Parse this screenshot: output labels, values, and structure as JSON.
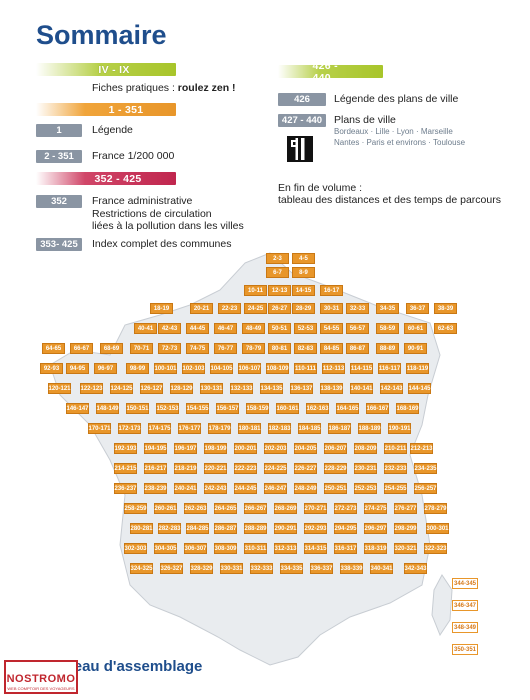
{
  "page_title": "Sommaire",
  "left": {
    "b1": {
      "range": "IV - IX",
      "text_prefix": "Fiches pratiques : ",
      "text_bold": "roulez zen !"
    },
    "b2": {
      "range": "1 - 351"
    },
    "legend": {
      "tag": "1",
      "text": "Légende"
    },
    "france": {
      "tag": "2 - 351",
      "text": "France 1/200 000"
    },
    "b3": {
      "range": "352 - 425"
    },
    "admin": {
      "tag": "352",
      "line1": "France administrative",
      "line2": "Restrictions de circulation",
      "line3": "liées à la pollution dans les villes"
    },
    "index": {
      "tag": "353- 425",
      "text": "Index complet des communes"
    }
  },
  "right": {
    "b4": {
      "range": "426 - 440"
    },
    "legend_plans": {
      "tag": "426",
      "text": "Légende des plans de ville"
    },
    "plans": {
      "tag": "427 - 440",
      "text": "Plans de ville",
      "cities1": "Bordeaux · Lille · Lyon · Marseille",
      "cities2": "Nantes · Paris et environs · Toulouse"
    },
    "end_line1": "En fin de volume :",
    "end_line2": "tableau des distances et des temps de parcours"
  },
  "colors": {
    "title": "#1f4e8c",
    "tile": "#e8962a",
    "tag": "#8a95a3",
    "green": "#a8c52a",
    "orange": "#e8962a",
    "crimson": "#c0264e"
  },
  "map_tiles": [
    [
      "2-3",
      "4-5",
      "6-7",
      "8-9",
      "10-11",
      "12-13",
      "14-15",
      "16-17",
      "18-19",
      "20-21",
      "22-23",
      "24-25",
      "26-27",
      "28-29",
      "30-31",
      "32-33",
      "34-35",
      "36-37",
      "38-39",
      "40-41",
      "42-43",
      "44-45",
      "46-47",
      "48-49"
    ],
    [
      "50-51",
      "52-53",
      "54-55",
      "56-57",
      "58-59",
      "60-61",
      "62-63",
      "64-65",
      "66-67",
      "68-69",
      "70-71",
      "72-73",
      "74-75",
      "76-77",
      "78-79",
      "80-81",
      "82-83",
      "84-85",
      "86-87",
      "88-89",
      "90-91",
      "92-93",
      "94-95",
      "96-97"
    ],
    [
      "98-99",
      "100-101",
      "102-103",
      "104-105",
      "106-107",
      "108-109",
      "110-111",
      "112-113",
      "114-115",
      "116-117",
      "118-119",
      "120-121",
      "122-123",
      "124-125",
      "126-127",
      "128-129",
      "130-131",
      "132-133",
      "134-135",
      "136-137",
      "138-139",
      "140-141",
      "142-143",
      "144-145"
    ],
    [
      "146-147",
      "148-149",
      "150-151",
      "152-153",
      "154-155",
      "156-157",
      "158-159",
      "160-161",
      "162-163",
      "164-165",
      "166-167",
      "168-169",
      "170-171",
      "172-173",
      "174-175",
      "176-177",
      "178-179",
      "180-181",
      "182-183",
      "184-185",
      "186-187",
      "188-189",
      "190-191",
      "192-193"
    ],
    [
      "194-195",
      "196-197",
      "198-199",
      "200-201",
      "202-203",
      "204-205",
      "206-207",
      "208-209",
      "210-211",
      "212-213",
      "214-215",
      "216-217",
      "218-219",
      "220-221",
      "222-223",
      "224-225",
      "226-227",
      "228-229",
      "230-231",
      "232-233",
      "234-235",
      "236-237",
      "238-239",
      "240-241"
    ],
    [
      "242-243",
      "244-245",
      "246-247",
      "248-249",
      "250-251",
      "252-253",
      "254-255",
      "256-257",
      "258-259",
      "260-261",
      "262-263",
      "264-265",
      "266-267",
      "268-269",
      "270-271",
      "272-273",
      "274-275",
      "276-277",
      "278-279",
      "280-281",
      "282-283",
      "284-285",
      "286-287",
      "288-289"
    ],
    [
      "290-291",
      "292-293",
      "294-295",
      "296-297",
      "298-299",
      "300-301",
      "302-303",
      "304-305",
      "306-307",
      "308-309",
      "310-311",
      "312-313",
      "314-315",
      "316-317",
      "318-319",
      "320-321",
      "322-323",
      "324-325",
      "326-327",
      "328-329",
      "330-331",
      "332-333",
      "334-335",
      "336-337"
    ],
    [
      "338-339",
      "340-341",
      "342-343"
    ]
  ],
  "right_tiles": [
    "344-345",
    "346-347",
    "348-349",
    "350-351"
  ],
  "assemblage_title": "Tableau d'assemblage",
  "logo": {
    "brand": "NOSTROMO",
    "slogan": "WEB COMPTOIR DES VOYAGEURS"
  }
}
